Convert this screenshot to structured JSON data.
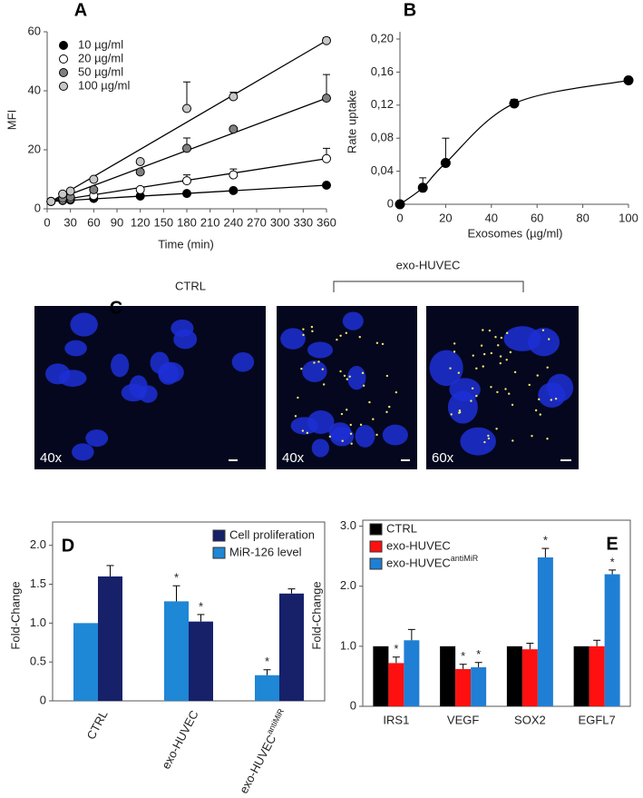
{
  "chart_data": [
    {
      "type": "scatter",
      "panel": "A",
      "x_label": "Time (min)",
      "y_label": "MFI",
      "x": [
        5,
        20,
        30,
        60,
        120,
        180,
        240,
        360
      ],
      "xlim": [
        0,
        360
      ],
      "xticks": [
        0,
        30,
        60,
        90,
        120,
        150,
        180,
        210,
        240,
        270,
        300,
        330,
        360
      ],
      "ylim": [
        0,
        60
      ],
      "yticks": [
        0,
        20,
        40,
        60
      ],
      "grid": false,
      "legend": "top-left",
      "series": [
        {
          "name": "10 µg/ml",
          "color": "#000000",
          "values": [
            2.5,
            2.8,
            3,
            3.5,
            4.3,
            5.2,
            6.2,
            8
          ],
          "errors": [
            null,
            null,
            null,
            null,
            null,
            null,
            null,
            null
          ]
        },
        {
          "name": "20 µg/ml",
          "color": "#ffffff",
          "values": [
            2.5,
            3,
            3.5,
            4.5,
            6.5,
            9.5,
            11.5,
            17
          ],
          "errors": [
            null,
            null,
            null,
            null,
            null,
            2,
            2,
            3.5
          ]
        },
        {
          "name": "50 µg/ml",
          "color": "#808080",
          "values": [
            2.5,
            3.5,
            4,
            6.5,
            12.5,
            20.5,
            27,
            37.5
          ],
          "errors": [
            null,
            null,
            null,
            null,
            null,
            3.5,
            null,
            8
          ]
        },
        {
          "name": "100 µg/ml",
          "color": "#c8c8c8",
          "values": [
            2.5,
            5,
            6,
            10,
            16,
            34,
            38,
            57
          ],
          "errors": [
            null,
            null,
            null,
            null,
            null,
            9,
            1.5,
            1
          ]
        }
      ]
    },
    {
      "type": "line",
      "panel": "B",
      "x_label": "Exosomes  (µg/ml)",
      "y_label": "Rate uptake",
      "x": [
        0,
        10,
        20,
        50,
        100
      ],
      "xlim": [
        0,
        100
      ],
      "xticks": [
        0,
        20,
        40,
        60,
        80,
        100
      ],
      "ylim": [
        0,
        0.2
      ],
      "yticks": [
        0,
        {
          "value": 0.04,
          "label": "0,04"
        },
        {
          "value": 0.08,
          "label": "0,08"
        },
        {
          "value": 0.12,
          "label": "0,12"
        },
        {
          "value": 0.16,
          "label": "0,16"
        },
        {
          "value": 0.2,
          "label": "0,20"
        }
      ],
      "grid": false,
      "series": [
        {
          "color": "#000000",
          "values": [
            0,
            0.02,
            0.05,
            0.122,
            0.15
          ],
          "errors": [
            null,
            0.012,
            0.03,
            0.005,
            null
          ]
        }
      ]
    },
    {
      "type": "bar",
      "panel": "D",
      "y_label": "Fold-Change",
      "categories": [
        "CTRL",
        "exo-HUVEC",
        "exo-HUVEC"
      ],
      "category_superscripts": [
        null,
        null,
        "antiMiR"
      ],
      "ylim": [
        0,
        2.3
      ],
      "yticks": [
        0,
        0.5,
        {
          "value": 1,
          "label": "1.0"
        },
        1.5,
        {
          "value": 2,
          "label": "2.0"
        }
      ],
      "grid": false,
      "legend": "top-right",
      "series": [
        {
          "name": "Cell proliferation",
          "color": "#16216a",
          "values": [
            1.6,
            1.02,
            1.38
          ],
          "errors": [
            0.14,
            0.09,
            0.06
          ],
          "significance": [
            null,
            "*",
            null
          ]
        },
        {
          "name": "MiR-126 level",
          "color": "#1e87d6",
          "values": [
            1.0,
            1.28,
            0.33
          ],
          "errors": [
            null,
            0.2,
            0.07
          ],
          "significance": [
            null,
            "*",
            "*"
          ]
        }
      ]
    },
    {
      "type": "bar",
      "panel": "E",
      "y_label": "Fold-Change",
      "categories": [
        "IRS1",
        "VEGF",
        "SOX2",
        "EGFL7"
      ],
      "ylim": [
        0,
        3.1
      ],
      "yticks": [
        0,
        {
          "value": 1,
          "label": "1.0"
        },
        {
          "value": 2,
          "label": "2.0"
        },
        {
          "value": 3,
          "label": "3.0"
        }
      ],
      "grid": false,
      "legend": "top-left",
      "series": [
        {
          "name": "CTRL",
          "color": "#000000",
          "values": [
            1,
            1,
            1,
            1
          ]
        },
        {
          "name": "exo-HUVEC",
          "color": "#ff1010",
          "values": [
            0.72,
            0.62,
            0.95,
            1.0
          ],
          "errors": [
            0.1,
            0.08,
            0.1,
            0.1
          ],
          "significance": [
            "*",
            "*",
            null,
            null
          ]
        },
        {
          "name": "exo-HUVEC",
          "name_superscript": "antiMiR",
          "color": "#1f7fd4",
          "values": [
            1.1,
            0.65,
            2.48,
            2.2
          ],
          "errors": [
            0.18,
            0.08,
            0.15,
            0.07
          ],
          "significance": [
            null,
            "*",
            "*",
            "*"
          ]
        }
      ]
    }
  ],
  "panel_c": {
    "label": "C",
    "ctrl_label": "CTRL",
    "group_label": "exo-HUVEC",
    "magnifications": [
      "40x",
      "40x",
      "60x"
    ]
  }
}
